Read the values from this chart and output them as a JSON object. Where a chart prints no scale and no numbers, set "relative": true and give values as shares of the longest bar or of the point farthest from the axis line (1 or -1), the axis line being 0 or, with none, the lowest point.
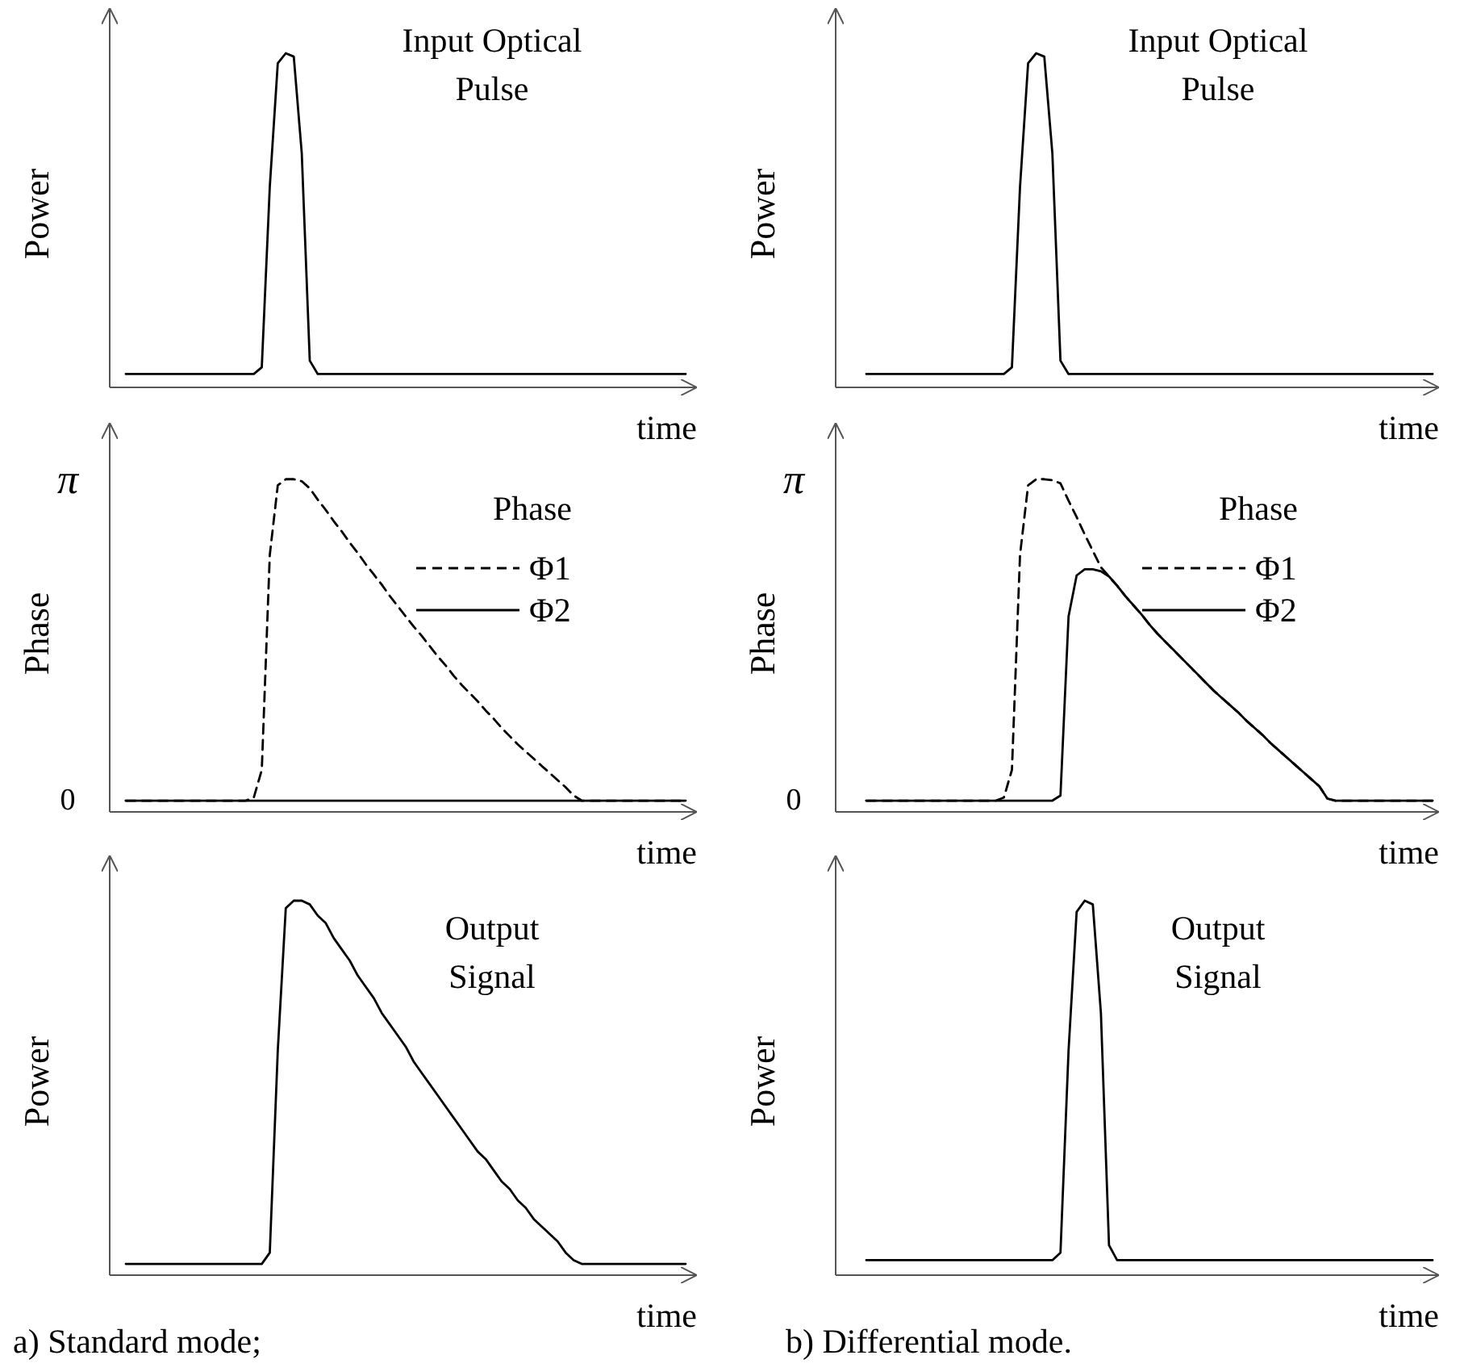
{
  "chart_data": [
    {
      "type": "line",
      "title": "Input Optical Pulse",
      "xlabel": "time",
      "ylabel": "Power",
      "relative": true,
      "categories": [
        null,
        null,
        null,
        null,
        null,
        null,
        null,
        null,
        null,
        null,
        null,
        null,
        null,
        null,
        null,
        null,
        null,
        null,
        null,
        null,
        null,
        null,
        null,
        null,
        null,
        null,
        null,
        null,
        null,
        null,
        null,
        null,
        null,
        null,
        null,
        null,
        null,
        null,
        null,
        null,
        null,
        null,
        null,
        null,
        null,
        null,
        null,
        null,
        null,
        null,
        null,
        null,
        null,
        null,
        null,
        null,
        null,
        null,
        null,
        null,
        null,
        null,
        null,
        null,
        null,
        null,
        null,
        null,
        null,
        null,
        null
      ],
      "series": [
        {
          "color": "#000000",
          "values": [
            0.04,
            0.04,
            0.04,
            0.04,
            0.04,
            0.04,
            0.04,
            0.04,
            0.04,
            0.04,
            0.04,
            0.04,
            0.04,
            0.04,
            0.04,
            0.04,
            0.04,
            0.06,
            0.6,
            0.97,
            1,
            0.99,
            0.7,
            0.08,
            0.04,
            0.04,
            0.04,
            0.04,
            0.04,
            0.04,
            0.04,
            0.04,
            0.04,
            0.04,
            0.04,
            0.04,
            0.04,
            0.04,
            0.04,
            0.04,
            0.04,
            0.04,
            0.04,
            0.04,
            0.04,
            0.04,
            0.04,
            0.04,
            0.04,
            0.04,
            0.04,
            0.04,
            0.04,
            0.04,
            0.04,
            0.04,
            0.04,
            0.04,
            0.04,
            0.04,
            0.04,
            0.04,
            0.04,
            0.04,
            0.04,
            0.04,
            0.04,
            0.04,
            0.04,
            0.04,
            0.04
          ]
        }
      ]
    },
    {
      "type": "line",
      "title": "Input Optical Pulse",
      "xlabel": "time",
      "ylabel": "Power",
      "relative": true,
      "categories": [
        null,
        null,
        null,
        null,
        null,
        null,
        null,
        null,
        null,
        null,
        null,
        null,
        null,
        null,
        null,
        null,
        null,
        null,
        null,
        null,
        null,
        null,
        null,
        null,
        null,
        null,
        null,
        null,
        null,
        null,
        null,
        null,
        null,
        null,
        null,
        null,
        null,
        null,
        null,
        null,
        null,
        null,
        null,
        null,
        null,
        null,
        null,
        null,
        null,
        null,
        null,
        null,
        null,
        null,
        null,
        null,
        null,
        null,
        null,
        null,
        null,
        null,
        null,
        null,
        null,
        null,
        null,
        null,
        null,
        null,
        null
      ],
      "series": [
        {
          "color": "#000000",
          "values": [
            0.04,
            0.04,
            0.04,
            0.04,
            0.04,
            0.04,
            0.04,
            0.04,
            0.04,
            0.04,
            0.04,
            0.04,
            0.04,
            0.04,
            0.04,
            0.04,
            0.04,
            0.04,
            0.06,
            0.6,
            0.97,
            1,
            0.99,
            0.7,
            0.08,
            0.04,
            0.04,
            0.04,
            0.04,
            0.04,
            0.04,
            0.04,
            0.04,
            0.04,
            0.04,
            0.04,
            0.04,
            0.04,
            0.04,
            0.04,
            0.04,
            0.04,
            0.04,
            0.04,
            0.04,
            0.04,
            0.04,
            0.04,
            0.04,
            0.04,
            0.04,
            0.04,
            0.04,
            0.04,
            0.04,
            0.04,
            0.04,
            0.04,
            0.04,
            0.04,
            0.04,
            0.04,
            0.04,
            0.04,
            0.04,
            0.04,
            0.04,
            0.04,
            0.04,
            0.04,
            0.04
          ]
        }
      ]
    },
    {
      "type": "line",
      "legend_title": "Phase",
      "xlabel": "time",
      "ylabel": "Phase",
      "legend": "top right",
      "ylim": [
        -0.11,
        3.69
      ],
      "yticks": [
        0,
        {
          "value": 3.14,
          "label": "π"
        }
      ],
      "categories": [
        null,
        null,
        null,
        null,
        null,
        null,
        null,
        null,
        null,
        null,
        null,
        null,
        null,
        null,
        null,
        null,
        null,
        null,
        null,
        null,
        null,
        null,
        null,
        null,
        null,
        null,
        null,
        null,
        null,
        null,
        null,
        null,
        null,
        null,
        null,
        null,
        null,
        null,
        null,
        null,
        null,
        null,
        null,
        null,
        null,
        null,
        null,
        null,
        null,
        null,
        null,
        null,
        null,
        null,
        null,
        null,
        null,
        null,
        null,
        null,
        null,
        null,
        null,
        null,
        null,
        null,
        null,
        null,
        null,
        null,
        null
      ],
      "series": [
        {
          "name": "Φ1",
          "color": "#000000",
          "line_style": "dashed",
          "values": [
            0,
            0,
            0,
            0,
            0,
            0,
            0,
            0,
            0,
            0,
            0,
            0,
            0,
            0,
            0,
            0,
            0.03,
            0.3,
            2.4,
            3.08,
            3.14,
            3.14,
            3.12,
            3.05,
            2.94,
            2.84,
            2.73,
            2.63,
            2.52,
            2.42,
            2.31,
            2.21,
            2.11,
            2.0,
            1.9,
            1.8,
            1.7,
            1.61,
            1.51,
            1.41,
            1.32,
            1.22,
            1.13,
            1.05,
            0.97,
            0.88,
            0.8,
            0.71,
            0.63,
            0.55,
            0.48,
            0.41,
            0.34,
            0.27,
            0.2,
            0.13,
            0.05,
            0,
            0,
            0,
            0,
            0,
            0,
            0,
            0,
            0,
            0,
            0,
            0,
            0,
            0
          ]
        },
        {
          "name": "Φ2",
          "color": "#000000",
          "line_style": "solid",
          "values": [
            0,
            0,
            0,
            0,
            0,
            0,
            0,
            0,
            0,
            0,
            0,
            0,
            0,
            0,
            0,
            0,
            0,
            0,
            0,
            0,
            0,
            0,
            0,
            0,
            0,
            0,
            0,
            0,
            0,
            0,
            0,
            0,
            0,
            0,
            0,
            0,
            0,
            0,
            0,
            0,
            0,
            0,
            0,
            0,
            0,
            0,
            0,
            0,
            0,
            0,
            0,
            0,
            0,
            0,
            0,
            0,
            0,
            0,
            0,
            0,
            0,
            0,
            0,
            0,
            0,
            0,
            0,
            0,
            0,
            0,
            0
          ]
        }
      ]
    },
    {
      "type": "line",
      "legend_title": "Phase",
      "xlabel": "time",
      "ylabel": "Phase",
      "legend": "top right",
      "ylim": [
        -0.11,
        3.69
      ],
      "yticks": [
        0,
        {
          "value": 3.14,
          "label": "π"
        }
      ],
      "categories": [
        null,
        null,
        null,
        null,
        null,
        null,
        null,
        null,
        null,
        null,
        null,
        null,
        null,
        null,
        null,
        null,
        null,
        null,
        null,
        null,
        null,
        null,
        null,
        null,
        null,
        null,
        null,
        null,
        null,
        null,
        null,
        null,
        null,
        null,
        null,
        null,
        null,
        null,
        null,
        null,
        null,
        null,
        null,
        null,
        null,
        null,
        null,
        null,
        null,
        null,
        null,
        null,
        null,
        null,
        null,
        null,
        null,
        null,
        null,
        null,
        null,
        null,
        null,
        null,
        null,
        null,
        null,
        null,
        null,
        null,
        null
      ],
      "series": [
        {
          "name": "Φ1",
          "color": "#000000",
          "line_style": "dashed",
          "values": [
            0,
            0,
            0,
            0,
            0,
            0,
            0,
            0,
            0,
            0,
            0,
            0,
            0,
            0,
            0,
            0,
            0,
            0.03,
            0.3,
            2.4,
            3.08,
            3.14,
            3.14,
            3.13,
            3.1,
            2.93,
            2.77,
            2.6,
            2.44,
            2.28,
            2.19,
            2.1,
            2.0,
            1.91,
            1.82,
            1.72,
            1.63,
            1.55,
            1.47,
            1.39,
            1.31,
            1.23,
            1.15,
            1.07,
            1.0,
            0.93,
            0.86,
            0.78,
            0.71,
            0.64,
            0.56,
            0.49,
            0.42,
            0.35,
            0.28,
            0.21,
            0.14,
            0.02,
            0,
            0,
            0,
            0,
            0,
            0,
            0,
            0,
            0,
            0,
            0,
            0,
            0
          ]
        },
        {
          "name": "Φ2",
          "color": "#000000",
          "line_style": "solid",
          "values": [
            0,
            0,
            0,
            0,
            0,
            0,
            0,
            0,
            0,
            0,
            0,
            0,
            0,
            0,
            0,
            0,
            0,
            0,
            0,
            0,
            0,
            0,
            0,
            0,
            0.05,
            1.8,
            2.2,
            2.26,
            2.26,
            2.24,
            2.19,
            2.1,
            2.0,
            1.91,
            1.82,
            1.72,
            1.63,
            1.55,
            1.47,
            1.39,
            1.31,
            1.23,
            1.15,
            1.07,
            1.0,
            0.93,
            0.86,
            0.78,
            0.71,
            0.64,
            0.56,
            0.49,
            0.42,
            0.35,
            0.28,
            0.21,
            0.14,
            0.02,
            0,
            0,
            0,
            0,
            0,
            0,
            0,
            0,
            0,
            0,
            0,
            0,
            0
          ]
        }
      ]
    },
    {
      "type": "line",
      "title": "Output Signal",
      "xlabel": "time",
      "ylabel": "Power",
      "relative": true,
      "annotations": [
        "a) Standard mode;"
      ],
      "categories": [
        null,
        null,
        null,
        null,
        null,
        null,
        null,
        null,
        null,
        null,
        null,
        null,
        null,
        null,
        null,
        null,
        null,
        null,
        null,
        null,
        null,
        null,
        null,
        null,
        null,
        null,
        null,
        null,
        null,
        null,
        null,
        null,
        null,
        null,
        null,
        null,
        null,
        null,
        null,
        null,
        null,
        null,
        null,
        null,
        null,
        null,
        null,
        null,
        null,
        null,
        null,
        null,
        null,
        null,
        null,
        null,
        null,
        null,
        null,
        null,
        null,
        null,
        null,
        null,
        null,
        null,
        null,
        null,
        null,
        null,
        null
      ],
      "series": [
        {
          "color": "#000000",
          "values": [
            0.03,
            0.03,
            0.03,
            0.03,
            0.03,
            0.03,
            0.03,
            0.03,
            0.03,
            0.03,
            0.03,
            0.03,
            0.03,
            0.03,
            0.03,
            0.03,
            0.03,
            0.03,
            0.06,
            0.6,
            0.98,
            1,
            1,
            0.99,
            0.96,
            0.94,
            0.9,
            0.87,
            0.84,
            0.8,
            0.77,
            0.74,
            0.7,
            0.67,
            0.64,
            0.61,
            0.57,
            0.54,
            0.51,
            0.48,
            0.45,
            0.42,
            0.39,
            0.36,
            0.33,
            0.31,
            0.28,
            0.25,
            0.23,
            0.2,
            0.18,
            0.15,
            0.13,
            0.11,
            0.09,
            0.06,
            0.04,
            0.03,
            0.03,
            0.03,
            0.03,
            0.03,
            0.03,
            0.03,
            0.03,
            0.03,
            0.03,
            0.03,
            0.03,
            0.03,
            0.03
          ]
        }
      ]
    },
    {
      "type": "line",
      "title": "Output Signal",
      "xlabel": "time",
      "ylabel": "Power",
      "relative": true,
      "annotations": [
        "b) Differential mode."
      ],
      "categories": [
        null,
        null,
        null,
        null,
        null,
        null,
        null,
        null,
        null,
        null,
        null,
        null,
        null,
        null,
        null,
        null,
        null,
        null,
        null,
        null,
        null,
        null,
        null,
        null,
        null,
        null,
        null,
        null,
        null,
        null,
        null,
        null,
        null,
        null,
        null,
        null,
        null,
        null,
        null,
        null,
        null,
        null,
        null,
        null,
        null,
        null,
        null,
        null,
        null,
        null,
        null,
        null,
        null,
        null,
        null,
        null,
        null,
        null,
        null,
        null,
        null,
        null,
        null,
        null,
        null,
        null,
        null,
        null,
        null,
        null,
        null
      ],
      "series": [
        {
          "color": "#000000",
          "values": [
            0.04,
            0.04,
            0.04,
            0.04,
            0.04,
            0.04,
            0.04,
            0.04,
            0.04,
            0.04,
            0.04,
            0.04,
            0.04,
            0.04,
            0.04,
            0.04,
            0.04,
            0.04,
            0.04,
            0.04,
            0.04,
            0.04,
            0.04,
            0.04,
            0.06,
            0.6,
            0.97,
            1,
            0.99,
            0.7,
            0.08,
            0.04,
            0.04,
            0.04,
            0.04,
            0.04,
            0.04,
            0.04,
            0.04,
            0.04,
            0.04,
            0.04,
            0.04,
            0.04,
            0.04,
            0.04,
            0.04,
            0.04,
            0.04,
            0.04,
            0.04,
            0.04,
            0.04,
            0.04,
            0.04,
            0.04,
            0.04,
            0.04,
            0.04,
            0.04,
            0.04,
            0.04,
            0.04,
            0.04,
            0.04,
            0.04,
            0.04,
            0.04,
            0.04,
            0.04,
            0.04
          ]
        }
      ]
    }
  ]
}
